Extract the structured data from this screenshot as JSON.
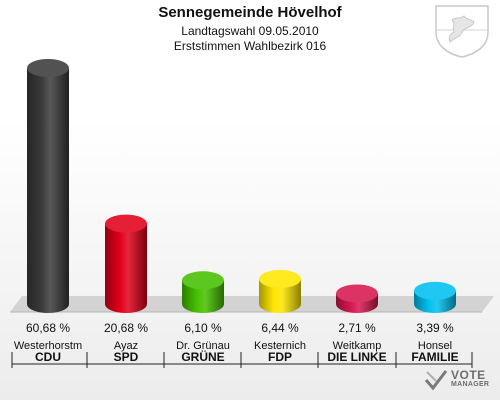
{
  "header": {
    "title": "Sennegemeinde Hövelhof",
    "subtitle_line1": "Landtagswahl 09.05.2010",
    "subtitle_line2": "Erststimmen Wahlbezirk 016"
  },
  "logo": {
    "line1": "VOTE",
    "line2": "MANAGER",
    "icon": "vote-manager-check-icon"
  },
  "crest_icon": "coat-of-arms-icon",
  "chart_data": {
    "type": "bar",
    "title": "Sennegemeinde Hövelhof",
    "categories": [
      "CDU",
      "SPD",
      "GRÜNE",
      "FDP",
      "DIE LINKE",
      "FAMILIE"
    ],
    "candidates": [
      "Westerhorstm",
      "Ayaz",
      "Dr. Grünau",
      "Kesternich",
      "Weitkamp",
      "Honsel"
    ],
    "values": [
      60.68,
      20.68,
      6.1,
      6.44,
      2.71,
      3.39
    ],
    "value_labels": [
      "60,68 %",
      "20,68 %",
      "6,10 %",
      "6,44 %",
      "2,71 %",
      "3,39 %"
    ],
    "colors": [
      "#3a3a3a",
      "#e2001a",
      "#46c000",
      "#ffe600",
      "#d6174f",
      "#00c0f0"
    ],
    "ylim": [
      0,
      60.68
    ],
    "grid": false
  }
}
